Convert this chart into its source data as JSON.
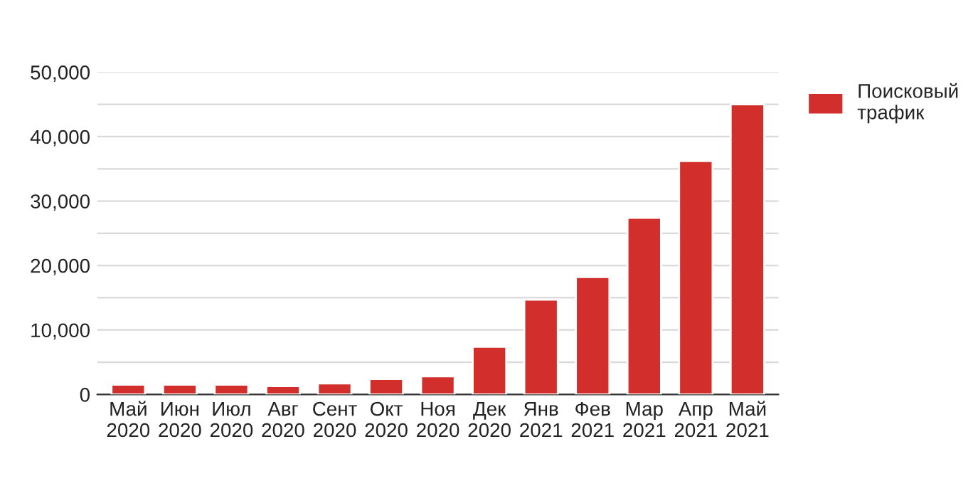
{
  "chart_data": {
    "type": "bar",
    "categories": [
      "Май\n2020",
      "Июн\n2020",
      "Июл\n2020",
      "Авг\n2020",
      "Сент\n2020",
      "Окт\n2020",
      "Ноя\n2020",
      "Дек\n2020",
      "Янв\n2021",
      "Фев\n2021",
      "Мар\n2021",
      "Апр\n2021",
      "Май\n2021"
    ],
    "series": [
      {
        "name": "Поисковый\nтрафик",
        "color": "#d22f2c",
        "values": [
          1500,
          1500,
          1500,
          1300,
          1700,
          2400,
          2800,
          7400,
          14700,
          18200,
          27400,
          36200,
          45000
        ]
      }
    ],
    "ylim": [
      0,
      50000
    ],
    "yticks": [
      {
        "value": 0,
        "label": "0"
      },
      {
        "value": 5000,
        "label": null
      },
      {
        "value": 10000,
        "label": "10,000"
      },
      {
        "value": 15000,
        "label": null
      },
      {
        "value": 20000,
        "label": "20,000"
      },
      {
        "value": 25000,
        "label": null
      },
      {
        "value": 30000,
        "label": "30,000"
      },
      {
        "value": 35000,
        "label": null
      },
      {
        "value": 40000,
        "label": "40,000"
      },
      {
        "value": 45000,
        "label": null
      },
      {
        "value": 50000,
        "label": "50,000"
      }
    ],
    "grid": "y",
    "legend": "top right"
  }
}
